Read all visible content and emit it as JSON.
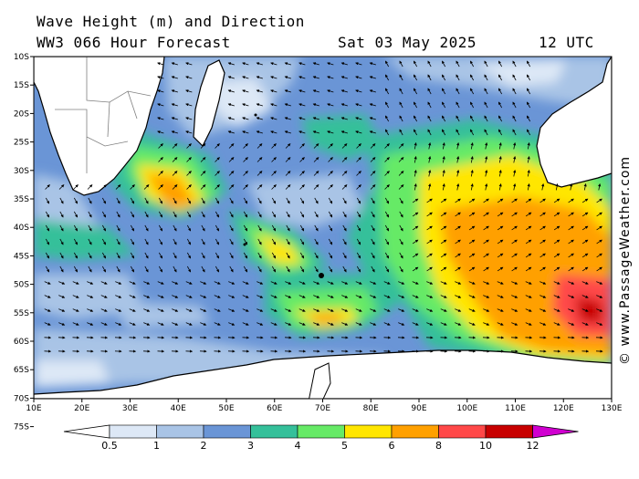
{
  "header": {
    "title": "Wave Height (m) and Direction",
    "model": "WW3 066 Hour Forecast",
    "date": "Sat 03 May 2025",
    "time": "12 UTC"
  },
  "credit": "© www.PassageWeather.com",
  "axes": {
    "lat_labels": [
      "10S",
      "15S",
      "20S",
      "25S",
      "30S",
      "35S",
      "40S",
      "45S",
      "50S",
      "55S",
      "60S",
      "65S",
      "70S",
      "75S"
    ],
    "lon_labels": [
      "10E",
      "20E",
      "30E",
      "40E",
      "50E",
      "60E",
      "70E",
      "80E",
      "90E",
      "100E",
      "110E",
      "120E",
      "130E"
    ]
  },
  "legend": {
    "ticks": [
      "0.5",
      "1",
      "2",
      "3",
      "4",
      "5",
      "6",
      "8",
      "10",
      "12"
    ],
    "colors": [
      "#ffffff",
      "#dde8f6",
      "#a9c4e6",
      "#6a95d6",
      "#35c09a",
      "#66ea66",
      "#ffe600",
      "#ffa000",
      "#ff4848",
      "#c80000",
      "#d000d0"
    ]
  },
  "colors": {
    "land": "#ffffff",
    "coast": "#000000",
    "border": "#808080"
  }
}
